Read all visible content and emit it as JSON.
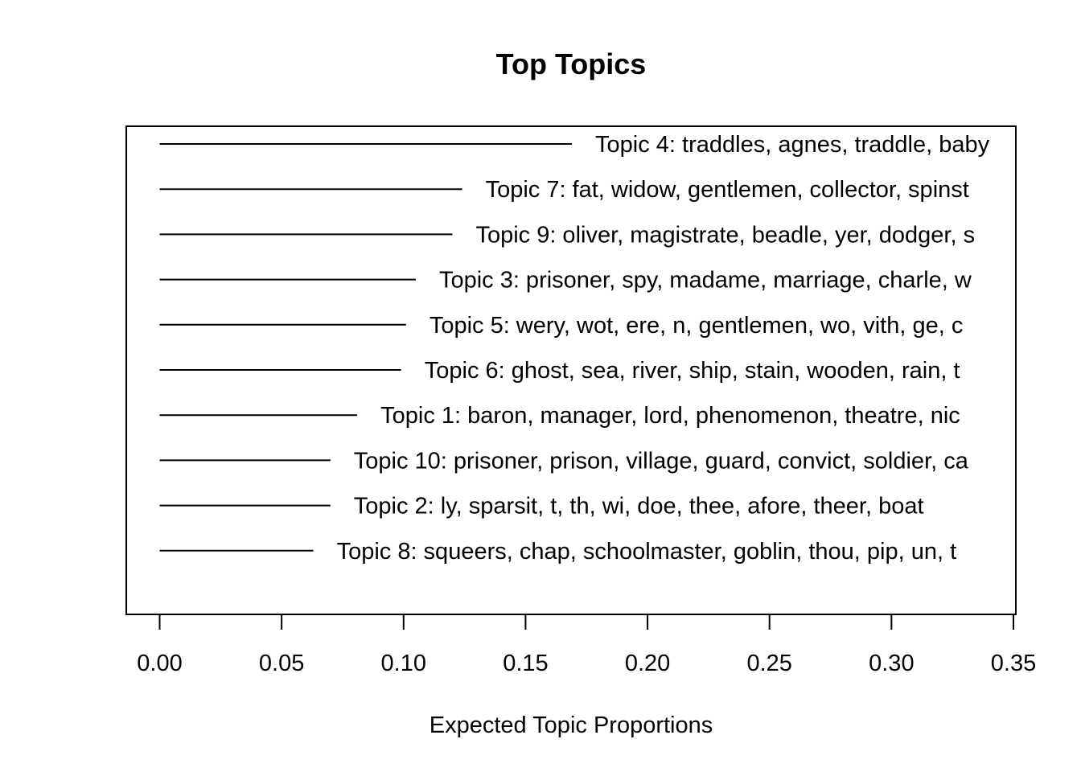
{
  "chart_data": {
    "type": "bar",
    "orientation": "horizontal",
    "title": "Top Topics",
    "xlabel": "Expected Topic Proportions",
    "ylabel": "",
    "xlim": [
      0.0,
      0.35
    ],
    "xticks": [
      "0.00",
      "0.05",
      "0.10",
      "0.15",
      "0.20",
      "0.25",
      "0.30",
      "0.35"
    ],
    "grid": false,
    "series": [
      {
        "values": [
          0.169,
          0.124,
          0.12,
          0.105,
          0.101,
          0.099,
          0.081,
          0.07,
          0.07,
          0.063
        ]
      }
    ],
    "categories": [
      "Topic 4: traddles, agnes, traddle, baby",
      "Topic 7: fat, widow, gentlemen, collector, spinst",
      "Topic 9: oliver, magistrate, beadle, yer, dodger, s",
      "Topic 3: prisoner, spy, madame, marriage, charle, w",
      "Topic 5: wery, wot, ere, n, gentlemen, wo, vith, ge, c",
      "Topic 6: ghost, sea, river, ship, stain, wooden, rain, t",
      "Topic 1: baron, manager, lord, phenomenon, theatre, nic",
      "Topic 10: prisoner, prison, village, guard, convict, soldier, ca",
      "Topic 2: ly, sparsit, t, th, wi, doe, thee, afore, theer, boat",
      "Topic 8: squeers, chap, schoolmaster, goblin, thou, pip, un, t"
    ],
    "line_color": "#000000"
  }
}
